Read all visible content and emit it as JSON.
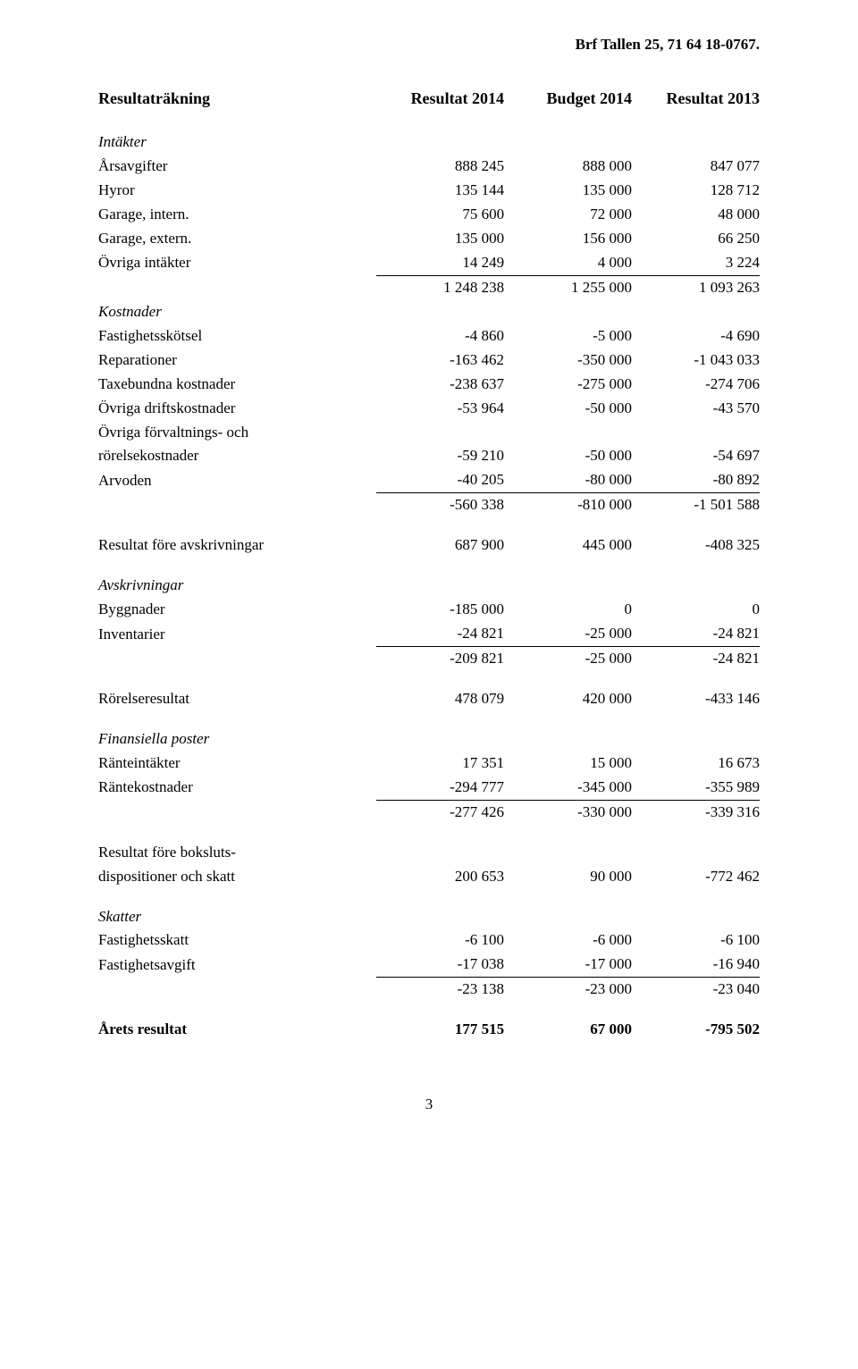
{
  "header": "Brf Tallen 25, 71 64 18-0767.",
  "columns": {
    "spacer": "",
    "c1": "Resultat 2014",
    "c2": "Budget 2014",
    "c3": "Resultat 2013"
  },
  "title": "Resultaträkning",
  "sections": {
    "intakter": {
      "heading": "Intäkter",
      "rows": [
        {
          "label": "Årsavgifter",
          "v1": "888 245",
          "v2": "888 000",
          "v3": "847 077"
        },
        {
          "label": "Hyror",
          "v1": "135 144",
          "v2": "135 000",
          "v3": "128 712"
        },
        {
          "label": "Garage, intern.",
          "v1": "75 600",
          "v2": "72 000",
          "v3": "48 000"
        },
        {
          "label": "Garage, extern.",
          "v1": "135 000",
          "v2": "156 000",
          "v3": "66 250"
        },
        {
          "label": "Övriga intäkter",
          "v1": "14 249",
          "v2": "4 000",
          "v3": "3 224"
        }
      ],
      "total": {
        "v1": "1 248 238",
        "v2": "1 255 000",
        "v3": "1 093 263"
      }
    },
    "kostnader": {
      "heading": "Kostnader",
      "rows": [
        {
          "label": "Fastighetsskötsel",
          "v1": "-4 860",
          "v2": "-5 000",
          "v3": "-4 690"
        },
        {
          "label": "Reparationer",
          "v1": "-163 462",
          "v2": "-350 000",
          "v3": "-1 043 033"
        },
        {
          "label": "Taxebundna kostnader",
          "v1": "-238 637",
          "v2": "-275 000",
          "v3": "-274 706"
        },
        {
          "label": "Övriga driftskostnader",
          "v1": "-53 964",
          "v2": "-50 000",
          "v3": "-43 570"
        },
        {
          "label": "Övriga förvaltnings- och rörelsekostnader",
          "label_line1": "Övriga förvaltnings- och",
          "label_line2": "rörelsekostnader",
          "v1": "-59 210",
          "v2": "-50 000",
          "v3": "-54 697"
        },
        {
          "label": "Arvoden",
          "v1": "-40 205",
          "v2": "-80 000",
          "v3": "-80 892"
        }
      ],
      "total": {
        "v1": "-560 338",
        "v2": "-810 000",
        "v3": "-1 501 588"
      }
    },
    "resultat_fore_avskr": {
      "label": "Resultat före avskrivningar",
      "v1": "687 900",
      "v2": "445 000",
      "v3": "-408 325"
    },
    "avskrivningar": {
      "heading": "Avskrivningar",
      "rows": [
        {
          "label": "Byggnader",
          "v1": "-185 000",
          "v2": "0",
          "v3": "0"
        },
        {
          "label": "Inventarier",
          "v1": "-24 821",
          "v2": "-25 000",
          "v3": "-24 821"
        }
      ],
      "total": {
        "v1": "-209 821",
        "v2": "-25 000",
        "v3": "-24 821"
      }
    },
    "rorelseresultat": {
      "label": "Rörelseresultat",
      "v1": "478 079",
      "v2": "420 000",
      "v3": "-433 146"
    },
    "finansiella": {
      "heading": "Finansiella poster",
      "rows": [
        {
          "label": "Ränteintäkter",
          "v1": "17 351",
          "v2": "15 000",
          "v3": "16 673"
        },
        {
          "label": "Räntekostnader",
          "v1": "-294 777",
          "v2": "-345 000",
          "v3": "-355 989"
        }
      ],
      "total": {
        "v1": "-277 426",
        "v2": "-330 000",
        "v3": "-339 316"
      }
    },
    "resultat_fore_bokslut": {
      "label_line1": "Resultat före boksluts-",
      "label_line2": "dispositioner och skatt",
      "v1": "200 653",
      "v2": "90 000",
      "v3": "-772 462"
    },
    "skatter": {
      "heading": "Skatter",
      "rows": [
        {
          "label": "Fastighetsskatt",
          "v1": "-6 100",
          "v2": "-6 000",
          "v3": "-6 100"
        },
        {
          "label": "Fastighetsavgift",
          "v1": "-17 038",
          "v2": "-17 000",
          "v3": "-16 940"
        }
      ],
      "total": {
        "v1": "-23 138",
        "v2": "-23 000",
        "v3": "-23 040"
      }
    },
    "arets_resultat": {
      "label": "Årets resultat",
      "v1": "177 515",
      "v2": "67 000",
      "v3": "-795 502"
    }
  },
  "page_number": "3"
}
